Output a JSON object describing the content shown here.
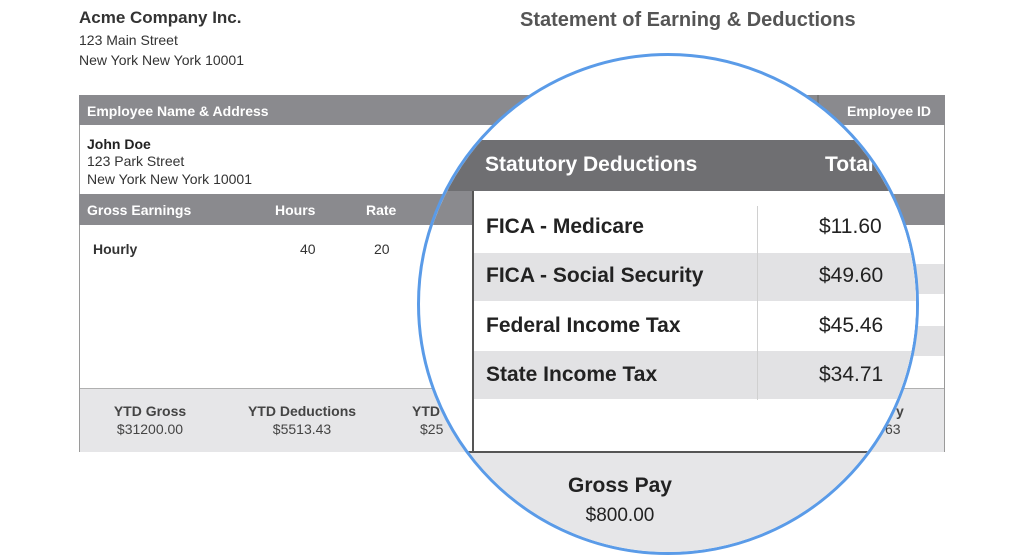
{
  "company": {
    "name": "Acme Company Inc.",
    "address_line1": "123 Main Street",
    "address_line2": "New York New York 10001"
  },
  "document": {
    "title": "Statement of Earning & Deductions"
  },
  "employee": {
    "header_label": "Employee Name & Address",
    "id_header_label": "Employee ID",
    "name": "John Doe",
    "address_line1": "123 Park Street",
    "address_line2": "New York New York 10001"
  },
  "earnings": {
    "headers": {
      "type": "Gross Earnings",
      "hours": "Hours",
      "rate": "Rate"
    },
    "rows": [
      {
        "type": "Hourly",
        "hours": "40",
        "rate": "20"
      }
    ]
  },
  "ytd": {
    "gross_label": "YTD Gross",
    "gross_value": "$31200.00",
    "deductions_label": "YTD Deductions",
    "deductions_value": "$5513.43",
    "partial_label": "YTD",
    "partial_value": "$25",
    "right_partial_label": "y",
    "right_partial_value": "63"
  },
  "magnified": {
    "header_label": "Statutory Deductions",
    "header_total": "Total",
    "rows": [
      {
        "label": "FICA - Medicare",
        "value": "$11.60"
      },
      {
        "label": "FICA - Social Security",
        "value": "$49.60"
      },
      {
        "label": "Federal Income Tax",
        "value": "$45.46"
      },
      {
        "label": "State Income Tax",
        "value": "$34.71"
      }
    ],
    "gross_pay_label": "Gross Pay",
    "gross_pay_value": "$800.00"
  },
  "colors": {
    "header_bar": "#8a8a8e",
    "stripe": "#e2e2e4",
    "ytd_bg": "#e6e6e8",
    "magnifier_border": "#5a9be8"
  }
}
